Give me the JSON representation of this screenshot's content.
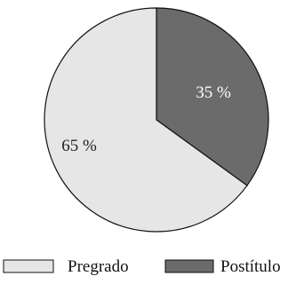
{
  "chart_data": {
    "type": "pie",
    "slices": [
      {
        "label": "Pregrado",
        "value": 65,
        "display": "65 %",
        "color": "#e6e6e6",
        "text_color": "#222222"
      },
      {
        "label": "Postítulo",
        "value": 35,
        "display": "35 %",
        "color": "#6b6b6b",
        "text_color": "#ffffff"
      }
    ],
    "start": "12 o'clock",
    "direction": "clockwise, Postítulo first",
    "legend_position": "bottom",
    "edge_color": "#111111"
  }
}
